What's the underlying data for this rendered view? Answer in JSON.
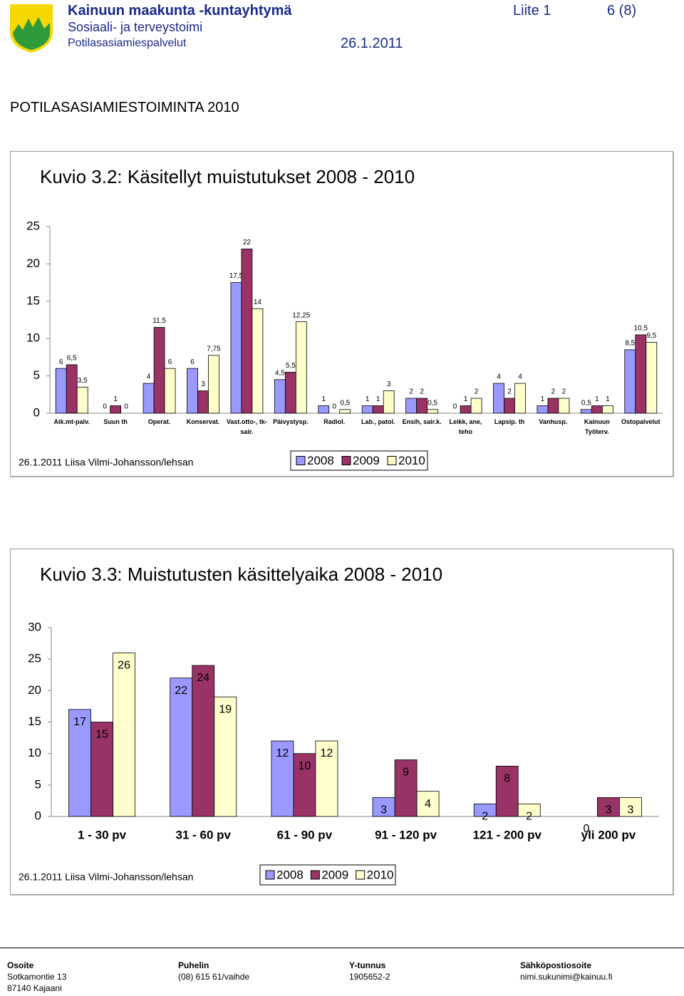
{
  "header": {
    "organization": "Kainuun maakunta -kuntayhtymä",
    "attachment": "Liite 1",
    "page": "6 (8)",
    "department": "Sosiaali- ja terveystoimi",
    "unit": "Potilasasiamiespalvelut",
    "date": "26.1.2011"
  },
  "section_title": "POTILASASIAMIESTOIMINTA 2010",
  "chart_data": [
    {
      "type": "bar",
      "title": "Kuvio 3.2: Käsitellyt muistutukset 2008 - 2010",
      "note": "26.1.2011 Liisa Vilmi-Johansson/lehsan",
      "categories": [
        "Aik.mt-palv.",
        "Suun th",
        "Operat.",
        "Konservat.",
        "Vast.otto-, tk-sair.",
        "Päivystysp.",
        "Radiol.",
        "Lab., patol.",
        "Ensih, sair.k.",
        "Leikk, ane, teho",
        "Lapsip. th",
        "Vanhusp.",
        "Kainuun Työterv.",
        "Ostopalvelut"
      ],
      "series": [
        {
          "name": "2008",
          "color": "#9999ff",
          "values": [
            6,
            0,
            4,
            6,
            17.5,
            4.5,
            1,
            1,
            2,
            0,
            4,
            1,
            0.5,
            8.5
          ],
          "value_labels": [
            "6",
            "0",
            "4",
            "6",
            "17,5",
            "4,5",
            "1",
            "1",
            "2",
            "0",
            "4",
            "1",
            "0,5",
            "8,5"
          ]
        },
        {
          "name": "2009",
          "color": "#993366",
          "values": [
            6.5,
            1,
            11.5,
            3,
            22,
            5.5,
            0,
            1,
            2,
            1,
            2,
            2,
            1,
            10.5
          ],
          "value_labels": [
            "6,5",
            "1",
            "11,5",
            "3",
            "22",
            "5,5",
            "0",
            "1",
            "2",
            "1",
            "2",
            "2",
            "1",
            "10,5"
          ]
        },
        {
          "name": "2010",
          "color": "#ffffcc",
          "values": [
            3.5,
            0,
            6,
            7.75,
            14,
            12.25,
            0.5,
            3,
            0.5,
            2,
            4,
            2,
            1,
            9.5
          ],
          "value_labels": [
            "3,5",
            "0",
            "6",
            "7,75",
            "14",
            "12,25",
            "0,5",
            "3",
            "0,5",
            "2",
            "4",
            "2",
            "1",
            "9,5"
          ]
        }
      ],
      "ylim": [
        0,
        25
      ],
      "yticks": [
        0,
        5,
        10,
        15,
        20,
        25
      ],
      "grid": false
    },
    {
      "type": "bar",
      "title": "Kuvio 3.3: Muistutusten käsittelyaika 2008 - 2010",
      "note": "26.1.2011 Liisa Vilmi-Johansson/lehsan",
      "categories": [
        "1 - 30 pv",
        "31 - 60 pv",
        "61 - 90 pv",
        "91 - 120 pv",
        "121 - 200 pv",
        "yli 200 pv"
      ],
      "series": [
        {
          "name": "2008",
          "color": "#9999ff",
          "values": [
            17,
            22,
            12,
            3,
            2,
            0
          ]
        },
        {
          "name": "2009",
          "color": "#993366",
          "values": [
            15,
            24,
            10,
            9,
            8,
            3
          ]
        },
        {
          "name": "2010",
          "color": "#ffffcc",
          "values": [
            26,
            19,
            12,
            4,
            2,
            3
          ]
        }
      ],
      "ylim": [
        0,
        30
      ],
      "yticks": [
        0,
        5,
        10,
        15,
        20,
        25,
        30
      ],
      "grid": false
    }
  ],
  "footer": {
    "address_label": "Osoite",
    "address_street": "Sotkamontie 13",
    "address_city": "87140 Kajaani",
    "phone_label": "Puhelin",
    "phone": "(08) 615 61/vaihde",
    "business_id_label": "Y-tunnus",
    "business_id": "1905652-2",
    "email_label": "Sähköpostiosoite",
    "email": "nimi.sukunimi@kainuu.fi"
  }
}
